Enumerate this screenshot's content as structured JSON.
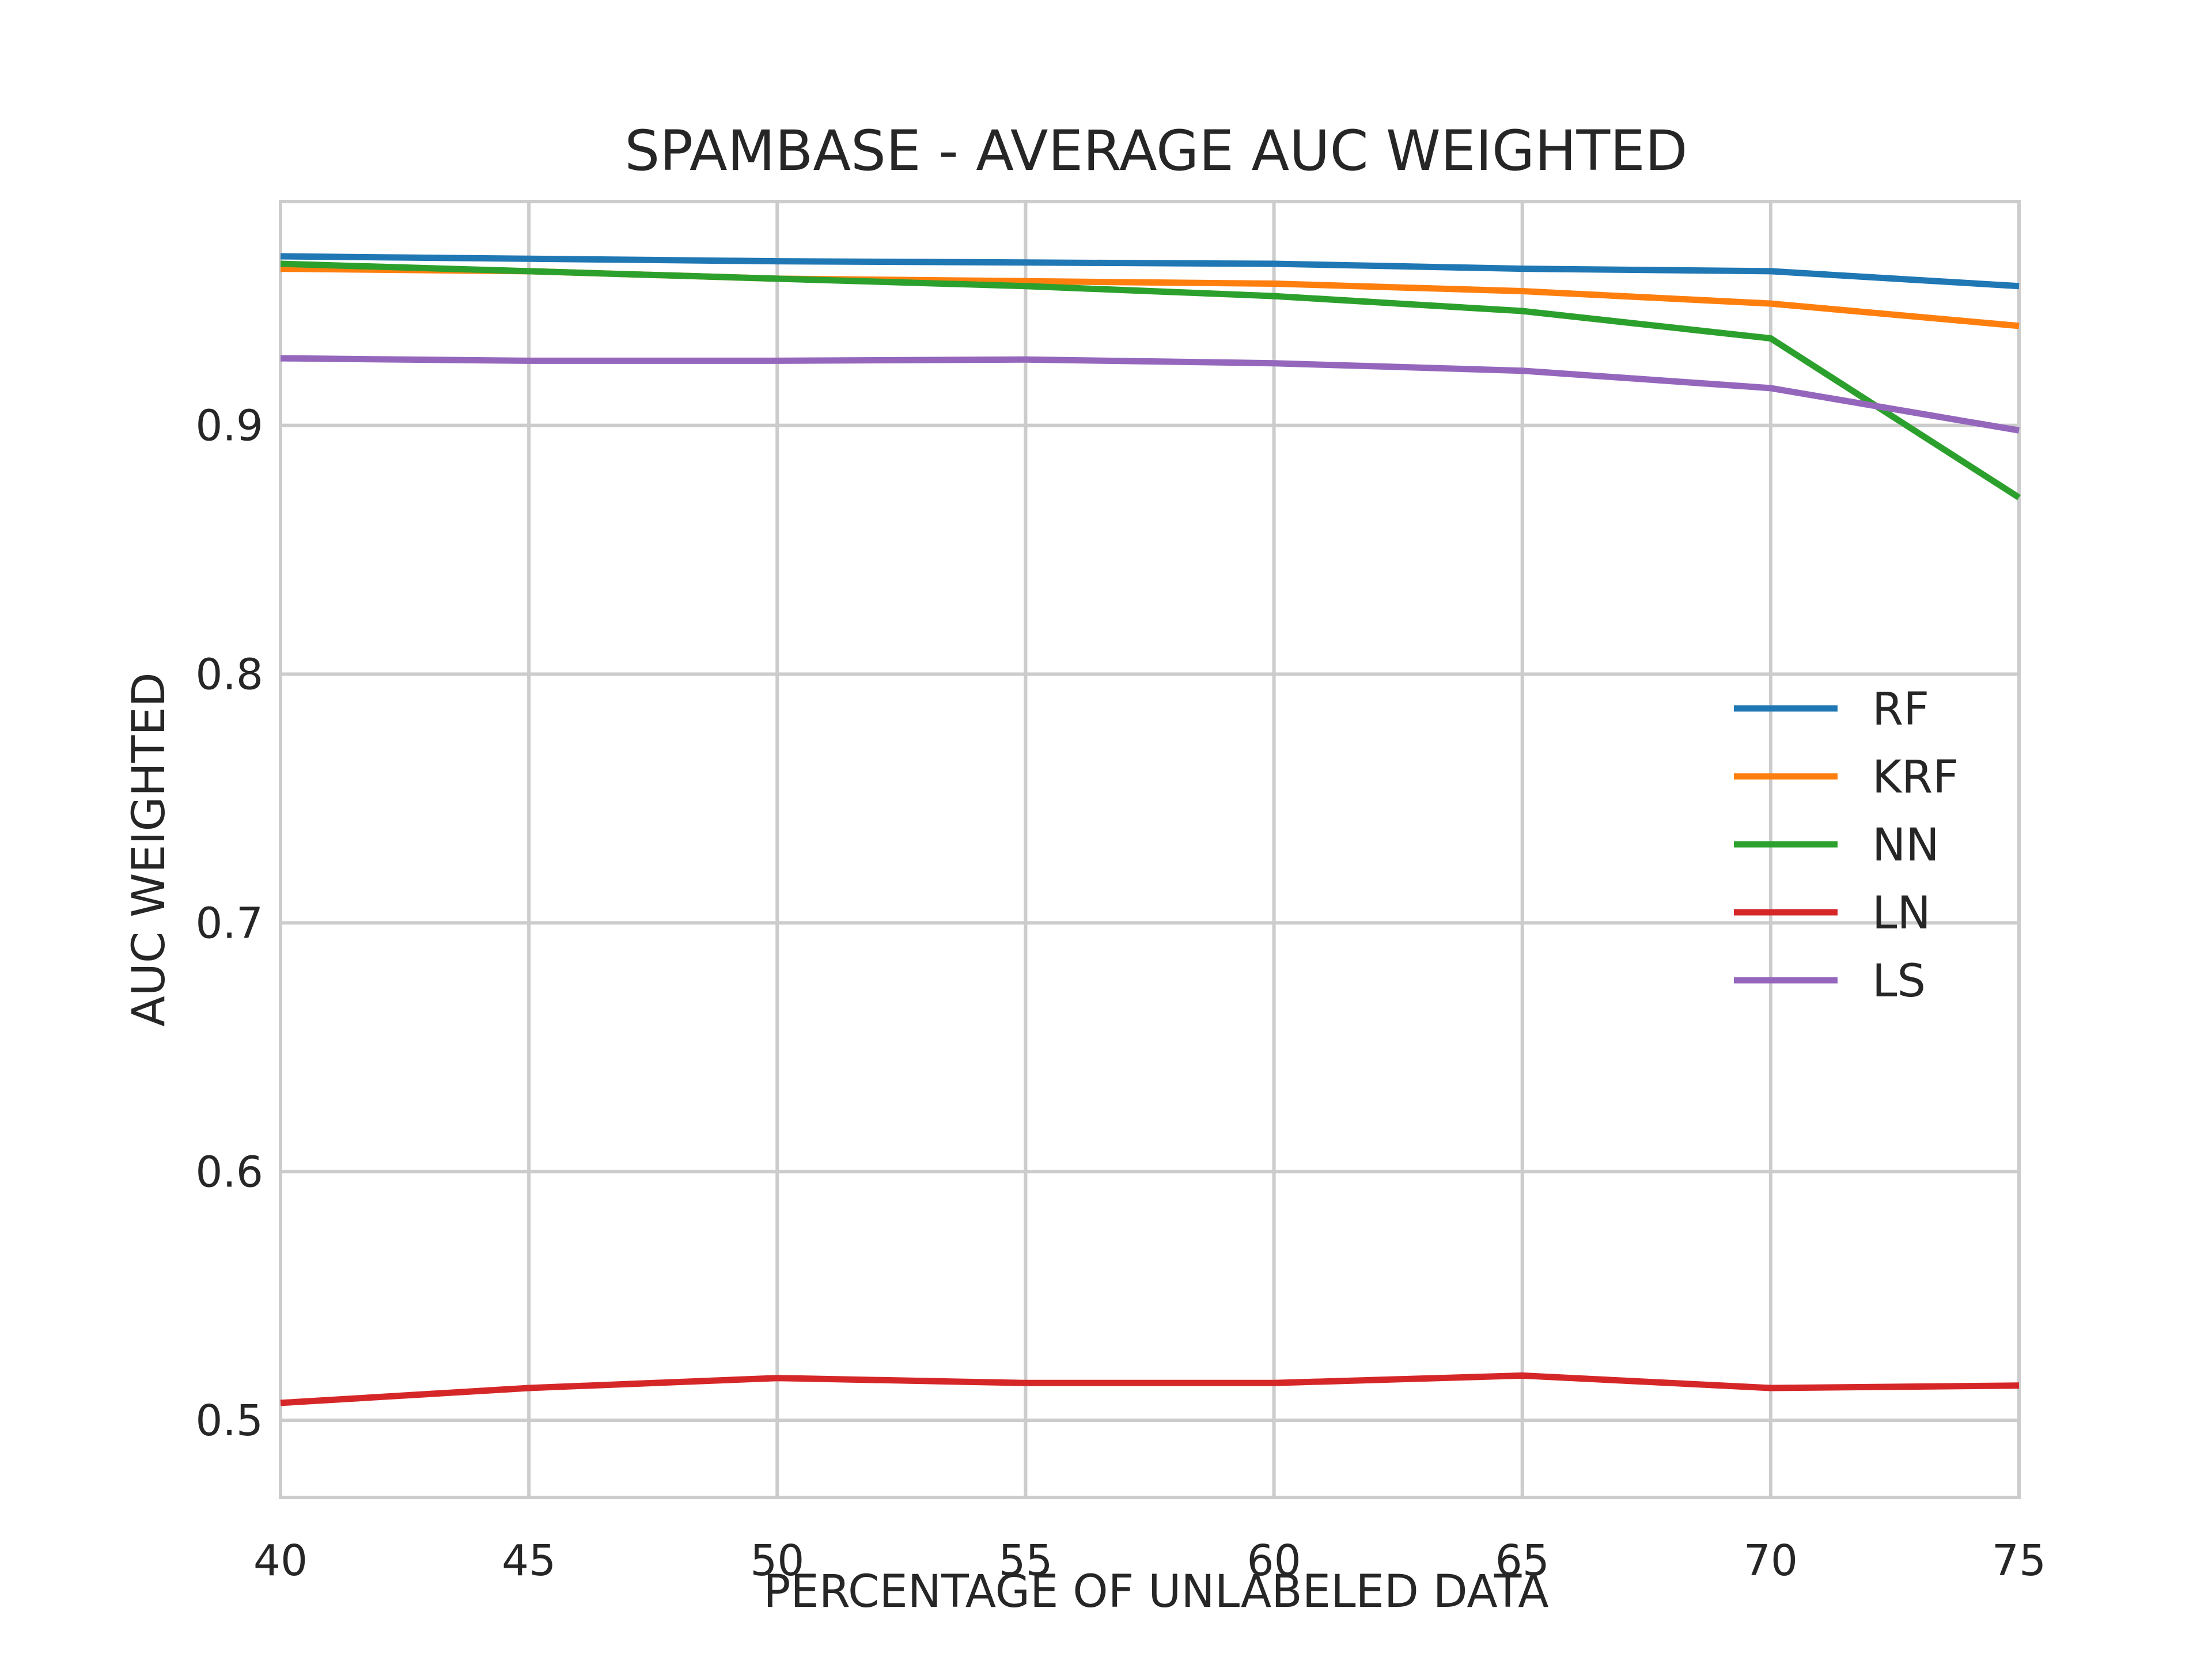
{
  "chart_data": {
    "type": "line",
    "title": "SPAMBASE - AVERAGE AUC WEIGHTED",
    "xlabel": "PERCENTAGE OF UNLABELED DATA",
    "ylabel": "AUC WEIGHTED",
    "x": [
      40,
      45,
      50,
      55,
      60,
      65,
      70,
      75
    ],
    "xlim": [
      40,
      75
    ],
    "ylim": [
      0.469,
      0.99
    ],
    "xticks": [
      "40",
      "45",
      "50",
      "55",
      "60",
      "65",
      "70",
      "75"
    ],
    "yticks": [
      "0.5",
      "0.6",
      "0.7",
      "0.8",
      "0.9"
    ],
    "ytick_values": [
      0.5,
      0.6,
      0.7,
      0.8,
      0.9
    ],
    "grid": true,
    "legend_position": "center-right",
    "series": [
      {
        "name": "RF",
        "color": "#1f77b4",
        "values": [
          0.968,
          0.967,
          0.966,
          0.9655,
          0.965,
          0.963,
          0.962,
          0.956
        ]
      },
      {
        "name": "KRF",
        "color": "#ff7f0e",
        "values": [
          0.963,
          0.962,
          0.959,
          0.958,
          0.957,
          0.954,
          0.949,
          0.94
        ]
      },
      {
        "name": "NN",
        "color": "#2ca02c",
        "values": [
          0.965,
          0.962,
          0.959,
          0.956,
          0.952,
          0.946,
          0.935,
          0.871
        ]
      },
      {
        "name": "LN",
        "color": "#d62728",
        "values": [
          0.507,
          0.513,
          0.517,
          0.515,
          0.515,
          0.518,
          0.513,
          0.514
        ]
      },
      {
        "name": "LS",
        "color": "#9467bd",
        "values": [
          0.927,
          0.926,
          0.926,
          0.9265,
          0.925,
          0.922,
          0.915,
          0.898
        ]
      }
    ]
  }
}
